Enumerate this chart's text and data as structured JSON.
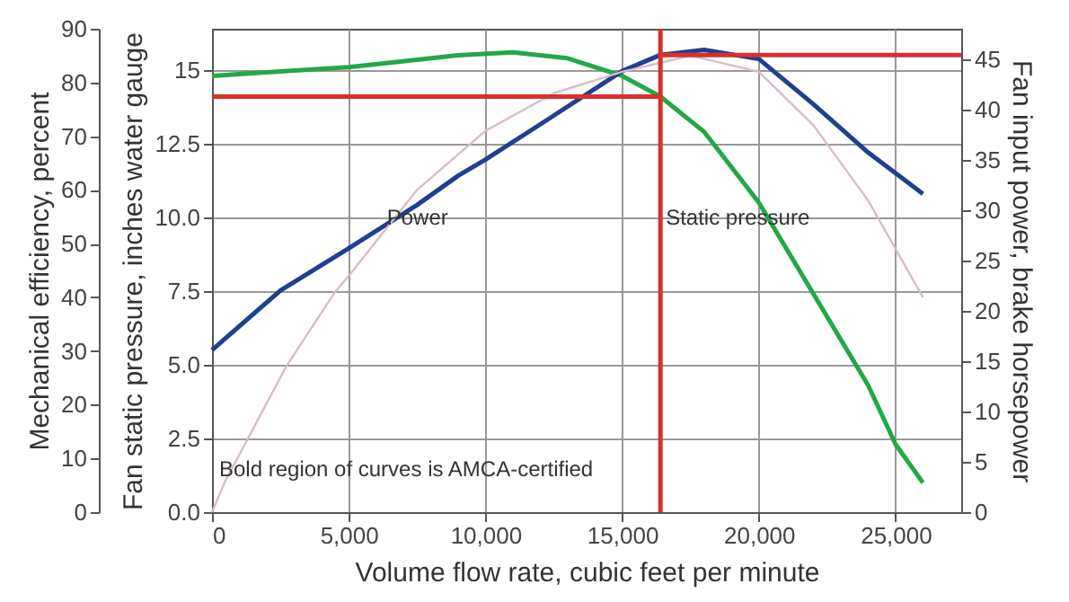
{
  "chart_data": {
    "type": "line",
    "xlabel": "Volume flow rate, cubic feet per minute",
    "ylabel": "Fan static pressure, inches water gauge",
    "y2label": "Fan input power, brake horsepower",
    "y3label": "Mechanical efficiency, percent",
    "xlim": [
      0,
      27400
    ],
    "xticks": [
      0,
      {
        "value": 5000,
        "label": "5,000"
      },
      {
        "value": 10000,
        "label": "10,000"
      },
      {
        "value": 15000,
        "label": "15,000"
      },
      {
        "value": 20000,
        "label": "20,000"
      },
      {
        "value": 25000,
        "label": "25,000"
      }
    ],
    "ylim": [
      0,
      16.4
    ],
    "yticks": [
      {
        "value": 0,
        "label": "0.0"
      },
      2.5,
      {
        "value": 5,
        "label": "5.0"
      },
      7.5,
      {
        "value": 10,
        "label": "10.0"
      },
      12.5,
      15
    ],
    "y2lim": [
      0,
      48
    ],
    "y2ticks": [
      0,
      5,
      10,
      15,
      20,
      25,
      30,
      35,
      40,
      45
    ],
    "y3lim": [
      0,
      90
    ],
    "y3ticks": [
      0,
      10,
      20,
      30,
      40,
      50,
      60,
      70,
      80,
      90
    ],
    "grid": true,
    "line_style": "solid",
    "marker": "none",
    "series": [
      {
        "color": "#22a845",
        "x": [
          0,
          2500,
          5000,
          7500,
          9000,
          11000,
          13000,
          15000,
          16400,
          18000,
          20000,
          22000,
          24000,
          25000,
          26000
        ],
        "values": [
          14.8,
          14.95,
          15.1,
          15.35,
          15.5,
          15.6,
          15.4,
          14.8,
          14.1,
          12.9,
          10.5,
          7.4,
          4.3,
          2.3,
          1.0
        ]
      },
      {
        "color": "#1f3f8f",
        "axis": "y2",
        "x": [
          0,
          2500,
          5000,
          7500,
          9000,
          10000,
          12000,
          15000,
          16400,
          18000,
          20000,
          22000,
          24000,
          26000
        ],
        "values": [
          16.1,
          22,
          26.2,
          30.5,
          33.4,
          35,
          38.5,
          43.8,
          45.4,
          45.9,
          45,
          40.5,
          35.7,
          31.6
        ]
      },
      {
        "color": "#d8bccb",
        "axis": "y3",
        "x": [
          0,
          500,
          1000,
          2700,
          4500,
          5000,
          7500,
          10000,
          12500,
          15000,
          17500,
          20000,
          22000,
          24000,
          26000
        ],
        "values": [
          0,
          6,
          10.7,
          27,
          41,
          44,
          60,
          71,
          78,
          82,
          85,
          82,
          72,
          58,
          40
        ]
      },
      {
        "color": "#d9302c",
        "x": [
          0,
          16400
        ],
        "values": [
          14.1,
          14.1
        ]
      },
      {
        "color": "#d9302c",
        "x": [
          16400,
          16400
        ],
        "values": [
          0,
          16.4
        ]
      },
      {
        "color": "#d9302c",
        "axis": "y2",
        "x": [
          16400,
          27400
        ],
        "values": [
          45.4,
          45.4
        ]
      }
    ],
    "annotations": [
      {
        "text": "Power",
        "x": 6200,
        "y": 10.0
      },
      {
        "text": "Static pressure",
        "x": 16400,
        "y": 10.0
      },
      "Bold region of curves is AMCA-certified"
    ]
  }
}
